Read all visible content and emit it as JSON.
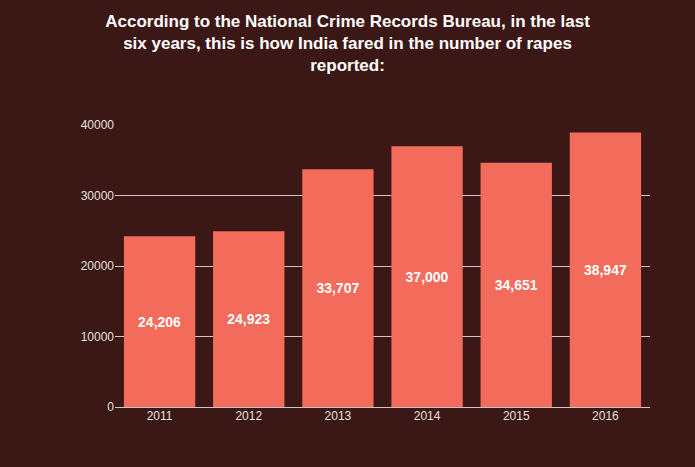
{
  "chart_data": {
    "type": "bar",
    "title": "According to the National Crime Records Bureau, in the last six years, this is how India fared in the number of rapes reported:",
    "categories": [
      "2011",
      "2012",
      "2013",
      "2014",
      "2015",
      "2016"
    ],
    "values": [
      24206,
      24923,
      33707,
      37000,
      34651,
      38947
    ],
    "value_labels": [
      "24,206",
      "24,923",
      "33,707",
      "37,000",
      "34,651",
      "38,947"
    ],
    "color": "#f26b5b",
    "ylim": [
      0,
      40000
    ],
    "yticks": [
      0,
      10000,
      20000,
      30000,
      40000
    ],
    "grid": true,
    "data_labels": true
  }
}
